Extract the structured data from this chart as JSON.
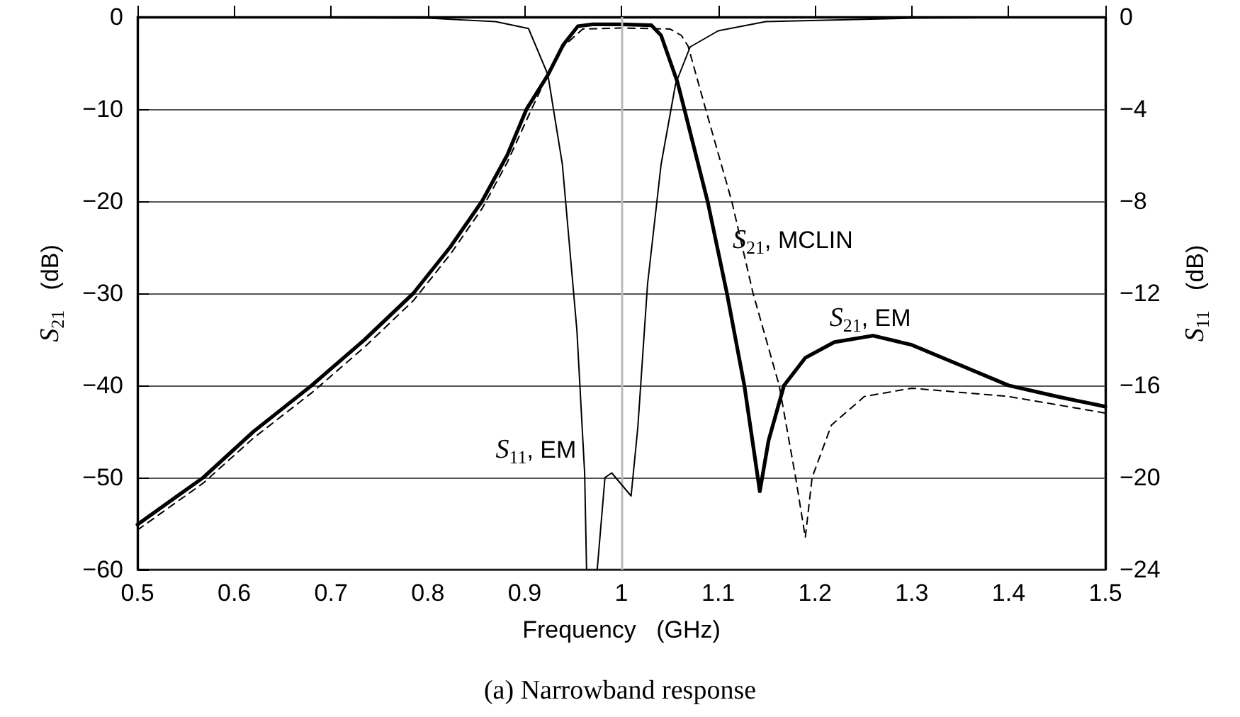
{
  "chart_data": {
    "type": "line",
    "title": "(a) Narrowband response",
    "xlabel": "Frequency   (GHz)",
    "ylabel": "S$_{21}$   (dB)",
    "y2label": "S$_{11}$   (dB)",
    "xlim": [
      0.5,
      1.5
    ],
    "xticks": [
      0.5,
      0.6,
      0.7,
      0.8,
      0.9,
      1.0,
      1.1,
      1.2,
      1.3,
      1.4,
      1.5
    ],
    "ylim": [
      -60,
      0
    ],
    "yticks": [
      {
        "value": -60,
        "label": "−60"
      },
      {
        "value": -50,
        "label": "−50"
      },
      {
        "value": -40,
        "label": "−40"
      },
      {
        "value": -30,
        "label": "−30"
      },
      {
        "value": -20,
        "label": "−20"
      },
      {
        "value": -10,
        "label": "−10"
      },
      0
    ],
    "y2lim": [
      -24,
      0
    ],
    "y2ticks": [
      {
        "value": -24,
        "label": "−24"
      },
      {
        "value": -20,
        "label": "−20"
      },
      {
        "value": -16,
        "label": "−16"
      },
      {
        "value": -12,
        "label": "−12"
      },
      {
        "value": -8,
        "label": "−8"
      },
      {
        "value": -4,
        "label": "−4"
      },
      0
    ],
    "grid": "y",
    "legend": false,
    "marker": "none",
    "ref_lines": [
      {
        "axis": "x",
        "value": 1.0,
        "color": "#bbbbbb"
      }
    ],
    "series": [
      {
        "name": "S$_{21}$, EM",
        "color": "#000000",
        "line_style": "solid",
        "x": [
          0.5,
          0.568,
          0.62,
          0.68,
          0.735,
          0.785,
          0.823,
          0.856,
          0.882,
          0.902,
          0.924,
          0.94,
          0.955,
          0.97,
          1.0,
          1.031,
          1.041,
          1.058,
          1.065,
          1.089,
          1.109,
          1.127,
          1.143,
          1.152,
          1.168,
          1.19,
          1.22,
          1.26,
          1.3,
          1.35,
          1.4,
          1.45,
          1.5
        ],
        "values": [
          -55.1,
          -50,
          -45,
          -40,
          -35,
          -30,
          -25,
          -20,
          -15,
          -10,
          -6.3,
          -3,
          -1,
          -0.8,
          -0.8,
          -0.9,
          -2,
          -7.1,
          -10,
          -20,
          -30,
          -40,
          -51.5,
          -46,
          -40,
          -37,
          -35.3,
          -34.6,
          -35.6,
          -37.8,
          -40,
          -41.2,
          -42.3
        ]
      },
      {
        "name": "S$_{21}$, MCLIN",
        "color": "#000000",
        "line_style": "dashed",
        "x": [
          0.5,
          0.568,
          0.62,
          0.68,
          0.735,
          0.785,
          0.823,
          0.856,
          0.882,
          0.905,
          0.925,
          0.94,
          0.96,
          1.0,
          1.05,
          1.062,
          1.069,
          1.087,
          1.114,
          1.136,
          1.163,
          1.18,
          1.19,
          1.197,
          1.217,
          1.251,
          1.3,
          1.4,
          1.5
        ],
        "values": [
          -55.7,
          -50.6,
          -45.7,
          -40.8,
          -35.8,
          -30.8,
          -25.8,
          -20.8,
          -15.8,
          -10.5,
          -6,
          -3.2,
          -1.3,
          -1.2,
          -1.3,
          -2,
          -3.2,
          -10,
          -20,
          -30,
          -40,
          -50,
          -56.5,
          -50,
          -44.3,
          -41.2,
          -40.3,
          -41.2,
          -43
        ]
      },
      {
        "name": "S$_{11}$, EM",
        "color": "#000000",
        "line_style": "solid",
        "axis": "y2",
        "x": [
          0.5,
          0.8,
          0.87,
          0.904,
          0.924,
          0.939,
          0.954,
          0.962,
          0.964,
          0.97,
          0.975,
          0.983,
          0.99,
          1.002,
          1.01,
          1.017,
          1.027,
          1.041,
          1.056,
          1.071,
          1.1,
          1.149,
          1.3,
          1.5
        ],
        "values": [
          0,
          -0.05,
          -0.2,
          -0.5,
          -2.5,
          -6.4,
          -13.6,
          -19.8,
          -24,
          null,
          -24,
          -20,
          -19.8,
          -20.4,
          -20.8,
          -17.8,
          -11.6,
          -6.4,
          -2.9,
          -1.3,
          -0.6,
          -0.2,
          -0.05,
          0
        ]
      }
    ]
  }
}
